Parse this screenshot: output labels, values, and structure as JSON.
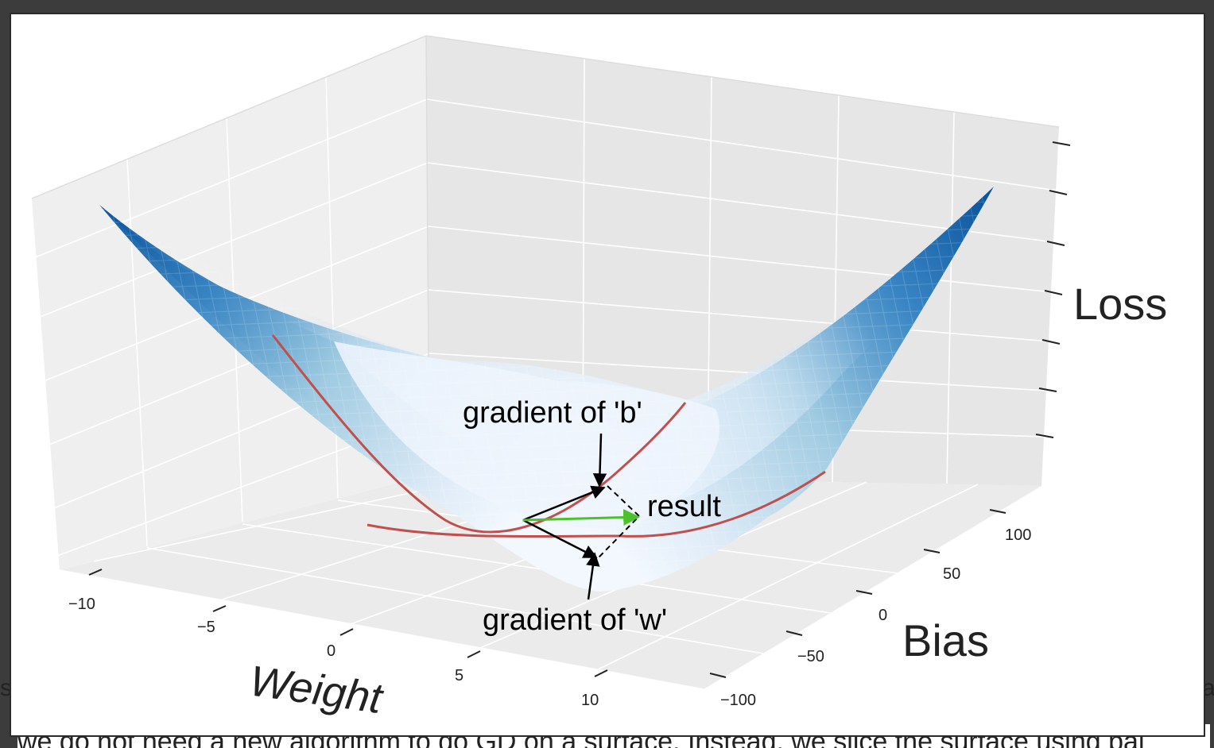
{
  "figure": {
    "axes": {
      "x": {
        "label": "Weight",
        "ticks": [
          "−10",
          "−5",
          "0",
          "5",
          "10"
        ]
      },
      "y": {
        "label": "Bias",
        "ticks": [
          "−100",
          "−50",
          "0",
          "50",
          "100"
        ]
      },
      "z": {
        "label": "Loss"
      }
    },
    "annotations": {
      "gradient_b": "gradient of 'b'",
      "gradient_w": "gradient of 'w'",
      "result": "result"
    },
    "colors": {
      "surface_deep": "#08519c",
      "surface_light": "#eef5fd",
      "slice_curve": "#c0504d",
      "result_arrow": "#4cc22a",
      "pane": "#efefef",
      "grid": "#ffffff"
    }
  },
  "background_text": {
    "line": "we do not need a new algorithm to do GD on a surface. Instead, we slice the surface using pal",
    "left_fragment": "s",
    "right_fragment": "a"
  }
}
